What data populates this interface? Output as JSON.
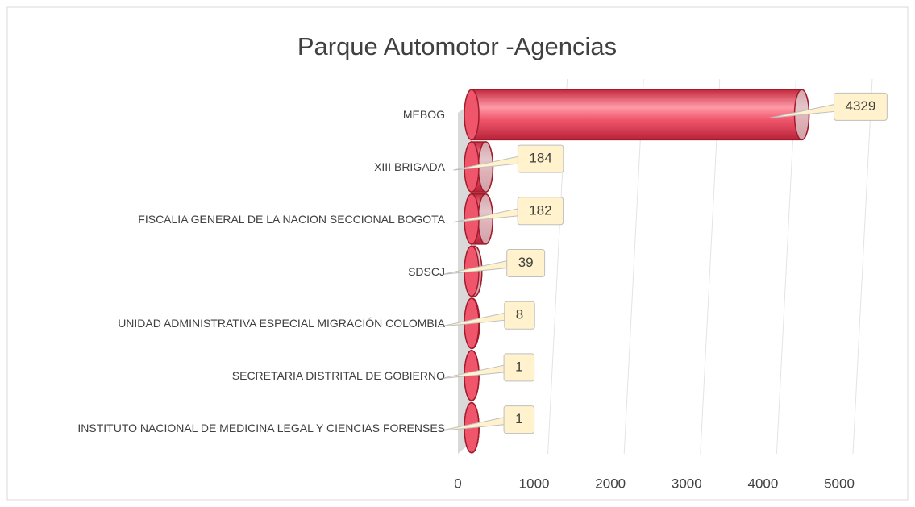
{
  "chart_data": {
    "type": "bar",
    "orientation": "horizontal",
    "title": "Parque Automotor -Agencias",
    "categories": [
      "MEBOG",
      "XIII BRIGADA",
      "FISCALIA GENERAL DE LA NACION SECCIONAL BOGOTA",
      "SDSCJ",
      "UNIDAD ADMINISTRATIVA ESPECIAL MIGRACIÓN COLOMBIA",
      "SECRETARIA DISTRITAL DE GOBIERNO",
      "INSTITUTO NACIONAL DE MEDICINA LEGAL Y CIENCIAS FORENSES"
    ],
    "values": [
      4329,
      184,
      182,
      39,
      8,
      1,
      1
    ],
    "color": "#f0566b",
    "xlim": [
      0,
      5000
    ],
    "xticks": [
      0,
      1000,
      2000,
      3000,
      4000,
      5000
    ],
    "grid": true
  }
}
